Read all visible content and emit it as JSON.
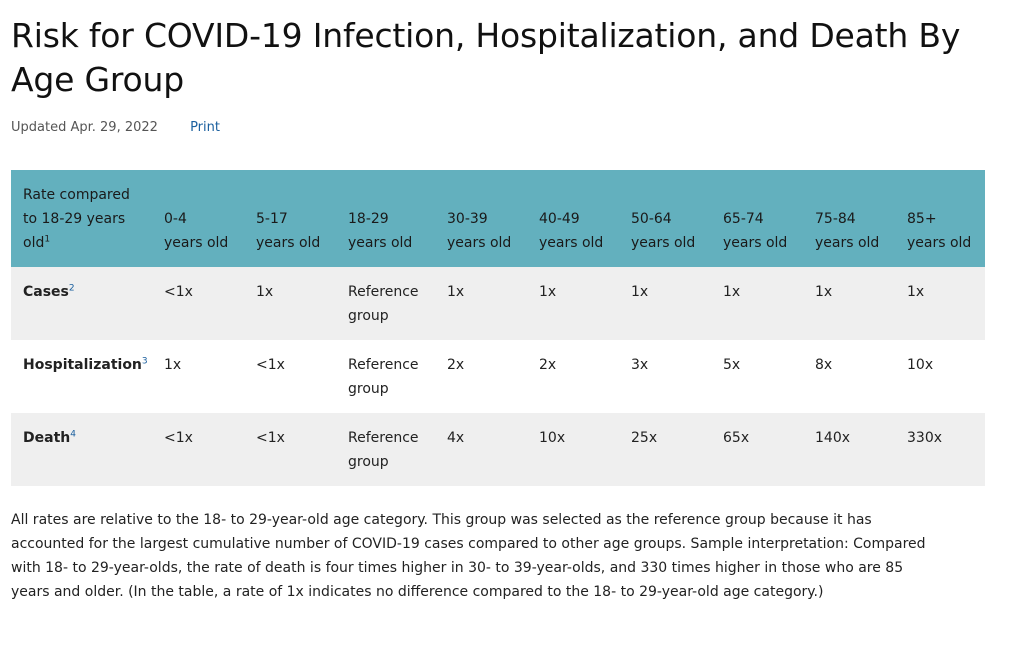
{
  "title": "Risk for COVID-19 Infection, Hospitalization, and Death By Age Group",
  "updated": "Updated Apr. 29, 2022",
  "print_label": "Print",
  "table": {
    "corner_label": "Rate compared to 18-29 years old",
    "corner_sup": "1",
    "columns": [
      {
        "range": "0-4",
        "unit": "years old"
      },
      {
        "range": "5-17",
        "unit": "years old"
      },
      {
        "range": "18-29",
        "unit": "years old"
      },
      {
        "range": "30-39",
        "unit": "years old"
      },
      {
        "range": "40-49",
        "unit": "years old"
      },
      {
        "range": "50-64",
        "unit": "years old"
      },
      {
        "range": "65-74",
        "unit": "years old"
      },
      {
        "range": "75-84",
        "unit": "years old"
      },
      {
        "range": "85+",
        "unit": "years old"
      }
    ],
    "rows": [
      {
        "label": "Cases",
        "sup": "2",
        "values": [
          "<1x",
          "1x",
          "Reference group",
          "1x",
          "1x",
          "1x",
          "1x",
          "1x",
          "1x"
        ]
      },
      {
        "label": "Hospitalization",
        "sup": "3",
        "values": [
          "1x",
          "<1x",
          "Reference group",
          "2x",
          "2x",
          "3x",
          "5x",
          "8x",
          "10x"
        ]
      },
      {
        "label": "Death",
        "sup": "4",
        "values": [
          "<1x",
          "<1x",
          "Reference group",
          "4x",
          "10x",
          "25x",
          "65x",
          "140x",
          "330x"
        ]
      }
    ]
  },
  "note": "All rates are relative to the 18- to 29-year-old age category. This group was selected as the reference group because it has accounted for the largest cumulative number of COVID-19 cases compared to other age groups. Sample interpretation: Compared with 18- to 29-year-olds, the rate of death is four times higher in 30- to 39-year-olds, and 330 times higher in those who are 85 years and older. (In the table, a rate of 1x indicates no difference compared to the 18- to 29-year-old age category.)",
  "colors": {
    "header_bg": "#63b0be",
    "row_shade": "#efefef",
    "link": "#1a5f9e"
  }
}
